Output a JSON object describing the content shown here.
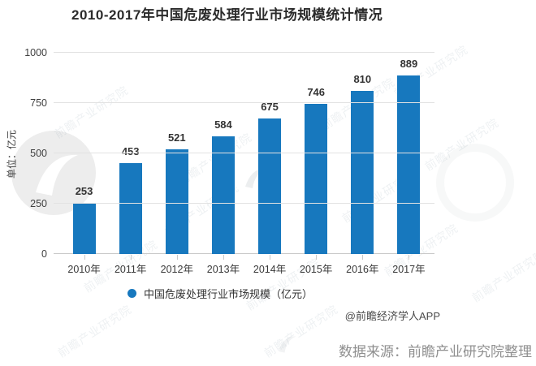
{
  "title": "2010-2017年中国危废处理行业市场规模统计情况",
  "chart_data": {
    "type": "bar",
    "title": "2010-2017年中国危废处理行业市场规模统计情况",
    "categories": [
      "2010年",
      "2011年",
      "2012年",
      "2013年",
      "2014年",
      "2015年",
      "2016年",
      "2017年"
    ],
    "values": [
      253,
      453,
      521,
      584,
      675,
      746,
      810,
      889
    ],
    "series_name": "中国危废处理行业市场规模（亿元）",
    "xlabel": "",
    "ylabel": "单位：亿元",
    "ylim": [
      0,
      1000
    ],
    "yticks": [
      0,
      250,
      500,
      750,
      1000
    ],
    "grid": true,
    "legend_position": "bottom",
    "bar_color": "#1778be"
  },
  "legend": {
    "marker_color": "#1778be",
    "label": "中国危废处理行业市场规模（亿元）"
  },
  "credit": "@前瞻经济学人APP",
  "source": "数据来源：前瞻产业研究院整理",
  "watermark": {
    "text": "前瞻产业研究院"
  },
  "colors": {
    "bar": "#1778be",
    "title_text": "#2b2b2b",
    "axis_text": "#404040",
    "gridline": "#e2e2e2",
    "axis_line": "#c9c9c9",
    "credit_text": "#4a4a4a",
    "source_text": "#8f8f8f"
  }
}
